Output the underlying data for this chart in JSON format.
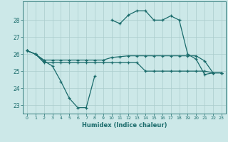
{
  "title": "",
  "xlabel": "Humidex (Indice chaleur)",
  "background_color": "#cce8e8",
  "grid_color": "#aacccc",
  "line_color": "#1a6b6b",
  "x": [
    0,
    1,
    2,
    3,
    4,
    5,
    6,
    7,
    8,
    9,
    10,
    11,
    12,
    13,
    14,
    15,
    16,
    17,
    18,
    19,
    20,
    21,
    22,
    23
  ],
  "line1": [
    26.2,
    26.0,
    25.6,
    25.3,
    24.4,
    23.4,
    22.85,
    22.85,
    24.7,
    null,
    28.0,
    27.8,
    28.3,
    28.55,
    28.55,
    28.0,
    28.0,
    28.25,
    28.0,
    26.0,
    25.7,
    24.8,
    24.9,
    24.9
  ],
  "line2": [
    26.2,
    26.0,
    25.65,
    25.65,
    25.65,
    25.65,
    25.65,
    25.65,
    25.65,
    25.65,
    25.8,
    25.85,
    25.9,
    25.9,
    25.9,
    25.9,
    25.9,
    25.9,
    25.9,
    25.9,
    25.9,
    25.6,
    24.9,
    24.9
  ],
  "line3": [
    26.2,
    26.0,
    25.5,
    25.5,
    25.5,
    25.5,
    25.5,
    25.5,
    25.5,
    25.5,
    25.5,
    25.5,
    25.5,
    25.5,
    25.0,
    25.0,
    25.0,
    25.0,
    25.0,
    25.0,
    25.0,
    25.0,
    24.9,
    24.9
  ],
  "ylim": [
    22.5,
    29.1
  ],
  "yticks": [
    23,
    24,
    25,
    26,
    27,
    28
  ],
  "xticks": [
    0,
    1,
    2,
    3,
    4,
    5,
    6,
    7,
    8,
    9,
    10,
    11,
    12,
    13,
    14,
    15,
    16,
    17,
    18,
    19,
    20,
    21,
    22,
    23
  ]
}
